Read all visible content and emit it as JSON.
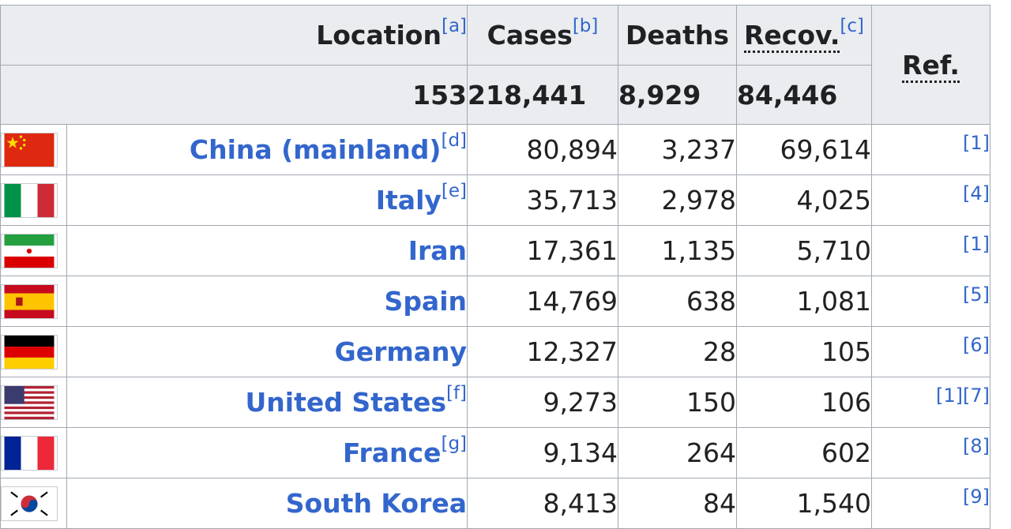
{
  "header": {
    "location": "Location",
    "location_note": "[a]",
    "cases": "Cases",
    "cases_note": "[b]",
    "deaths": "Deaths",
    "recov": "Recov.",
    "recov_note": "[c]",
    "ref": "Ref."
  },
  "totals": {
    "locations": "153",
    "cases": "218,441",
    "deaths": "8,929",
    "recov": "84,446"
  },
  "rows": [
    {
      "flag": "china-flag-icon",
      "name": "China (mainland)",
      "note": "[d]",
      "cases": "80,894",
      "deaths": "3,237",
      "recov": "69,614",
      "ref": "[1]"
    },
    {
      "flag": "italy-flag-icon",
      "name": "Italy",
      "note": "[e]",
      "cases": "35,713",
      "deaths": "2,978",
      "recov": "4,025",
      "ref": "[4]"
    },
    {
      "flag": "iran-flag-icon",
      "name": "Iran",
      "note": "",
      "cases": "17,361",
      "deaths": "1,135",
      "recov": "5,710",
      "ref": "[1]"
    },
    {
      "flag": "spain-flag-icon",
      "name": "Spain",
      "note": "",
      "cases": "14,769",
      "deaths": "638",
      "recov": "1,081",
      "ref": "[5]"
    },
    {
      "flag": "germany-flag-icon",
      "name": "Germany",
      "note": "",
      "cases": "12,327",
      "deaths": "28",
      "recov": "105",
      "ref": "[6]"
    },
    {
      "flag": "usa-flag-icon",
      "name": "United States",
      "note": "[f]",
      "cases": "9,273",
      "deaths": "150",
      "recov": "106",
      "ref": "[1][7]"
    },
    {
      "flag": "france-flag-icon",
      "name": "France",
      "note": "[g]",
      "cases": "9,134",
      "deaths": "264",
      "recov": "602",
      "ref": "[8]"
    },
    {
      "flag": "south-korea-flag-icon",
      "name": "South Korea",
      "note": "",
      "cases": "8,413",
      "deaths": "84",
      "recov": "1,540",
      "ref": "[9]"
    }
  ],
  "colors": {
    "link": "#3366cc",
    "header_bg": "#eaecf0",
    "border": "#a2a9b1"
  }
}
